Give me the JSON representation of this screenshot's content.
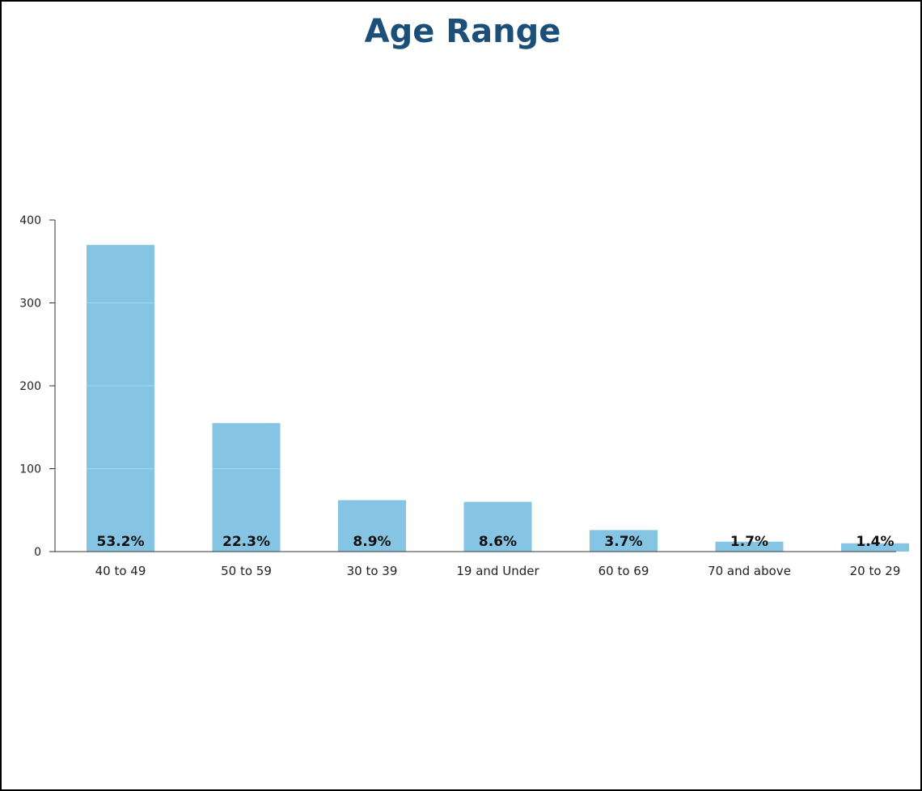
{
  "chart_data": {
    "type": "bar",
    "title": "Age Range",
    "xlabel": "",
    "ylabel": "",
    "ylim": [
      0,
      400
    ],
    "yticks": [
      0,
      100,
      200,
      300,
      400
    ],
    "categories": [
      "40 to 49",
      "50 to 59",
      "30 to 39",
      "19 and Under",
      "60 to 69",
      "70 and above",
      "20 to 29"
    ],
    "values": [
      370,
      155,
      62,
      60,
      26,
      12,
      10
    ],
    "data_labels": [
      "53.2%",
      "22.3%",
      "8.9%",
      "8.6%",
      "3.7%",
      "1.7%",
      "1.4%"
    ],
    "bar_color": "#85c5e3",
    "grid": false,
    "legend": "none"
  },
  "colors": {
    "title": "#1b4f7a",
    "axis": "#333333",
    "frame": "#000000"
  }
}
